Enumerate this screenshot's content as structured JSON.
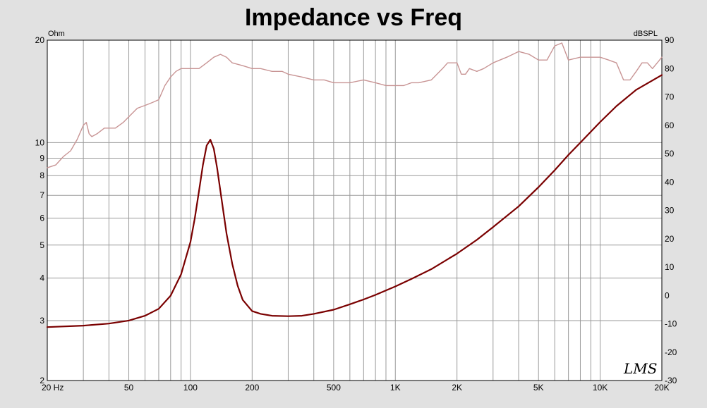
{
  "chart_data": {
    "type": "line",
    "title": "Impedance vs Freq",
    "left_unit": "Ohm",
    "right_unit": "dBSPL",
    "watermark": "LMS",
    "x_scale": "log",
    "xlim": [
      20,
      20000
    ],
    "y_left_scale": "log",
    "y_left_lim": [
      2,
      20
    ],
    "y_right_lim": [
      -30,
      90
    ],
    "grid": true,
    "x_ticks": [
      {
        "value": 20,
        "label": "20  Hz"
      },
      {
        "value": 50,
        "label": "50"
      },
      {
        "value": 100,
        "label": "100"
      },
      {
        "value": 200,
        "label": "200"
      },
      {
        "value": 500,
        "label": "500"
      },
      {
        "value": 1000,
        "label": "1K"
      },
      {
        "value": 2000,
        "label": "2K"
      },
      {
        "value": 5000,
        "label": "5K"
      },
      {
        "value": 10000,
        "label": "10K"
      },
      {
        "value": 20000,
        "label": "20K"
      }
    ],
    "y_left_ticks": [
      {
        "value": 2,
        "label": "2"
      },
      {
        "value": 3,
        "label": "3"
      },
      {
        "value": 4,
        "label": "4"
      },
      {
        "value": 5,
        "label": "5"
      },
      {
        "value": 6,
        "label": "6"
      },
      {
        "value": 7,
        "label": "7"
      },
      {
        "value": 8,
        "label": "8"
      },
      {
        "value": 9,
        "label": "9"
      },
      {
        "value": 10,
        "label": "10"
      },
      {
        "value": 20,
        "label": "20"
      }
    ],
    "y_right_ticks": [
      {
        "value": 90,
        "label": "90"
      },
      {
        "value": 80,
        "label": "80"
      },
      {
        "value": 70,
        "label": "70"
      },
      {
        "value": 60,
        "label": "60"
      },
      {
        "value": 50,
        "label": "50"
      },
      {
        "value": 40,
        "label": "40"
      },
      {
        "value": 30,
        "label": "30"
      },
      {
        "value": 20,
        "label": "20"
      },
      {
        "value": 10,
        "label": "10"
      },
      {
        "value": 0,
        "label": "0"
      },
      {
        "value": -10,
        "label": "-10"
      },
      {
        "value": -20,
        "label": "-20"
      },
      {
        "value": -30,
        "label": "-30"
      }
    ],
    "series": [
      {
        "axis": "left",
        "color": "#7a0000",
        "x": [
          20,
          30,
          40,
          50,
          60,
          70,
          80,
          90,
          100,
          105,
          110,
          115,
          120,
          125,
          130,
          135,
          140,
          150,
          160,
          170,
          180,
          200,
          220,
          250,
          300,
          350,
          400,
          500,
          600,
          700,
          800,
          1000,
          1200,
          1500,
          2000,
          2500,
          3000,
          4000,
          5000,
          6000,
          7000,
          8000,
          10000,
          12000,
          15000,
          20000
        ],
        "y": [
          2.87,
          2.9,
          2.94,
          3.0,
          3.1,
          3.25,
          3.55,
          4.1,
          5.1,
          6.0,
          7.2,
          8.6,
          9.8,
          10.2,
          9.6,
          8.4,
          7.2,
          5.4,
          4.4,
          3.8,
          3.45,
          3.2,
          3.14,
          3.1,
          3.09,
          3.1,
          3.14,
          3.23,
          3.35,
          3.46,
          3.57,
          3.78,
          3.98,
          4.25,
          4.72,
          5.18,
          5.65,
          6.5,
          7.4,
          8.3,
          9.2,
          10.0,
          11.5,
          12.8,
          14.3,
          15.8
        ]
      },
      {
        "axis": "right",
        "color": "#c89494",
        "x": [
          20,
          22,
          24,
          26,
          28,
          30,
          31,
          32,
          33,
          35,
          38,
          40,
          43,
          47,
          50,
          55,
          60,
          65,
          70,
          75,
          80,
          85,
          90,
          100,
          110,
          120,
          130,
          140,
          150,
          160,
          180,
          200,
          220,
          250,
          280,
          300,
          350,
          400,
          450,
          500,
          600,
          700,
          800,
          900,
          1000,
          1100,
          1200,
          1300,
          1500,
          1700,
          1800,
          2000,
          2100,
          2200,
          2300,
          2500,
          2700,
          3000,
          3500,
          4000,
          4500,
          5000,
          5500,
          6000,
          6500,
          7000,
          8000,
          9000,
          10000,
          11000,
          12000,
          13000,
          14000,
          15000,
          16000,
          17000,
          18000,
          19000,
          20000
        ],
        "y": [
          45,
          46,
          49,
          51,
          55,
          60,
          61,
          57,
          56,
          57,
          59,
          59,
          59,
          61,
          63,
          66,
          67,
          68,
          69,
          74,
          77,
          79,
          80,
          80,
          80,
          82,
          84,
          85,
          84,
          82,
          81,
          80,
          80,
          79,
          79,
          78,
          77,
          76,
          76,
          75,
          75,
          76,
          75,
          74,
          74,
          74,
          75,
          75,
          76,
          80,
          82,
          82,
          78,
          78,
          80,
          79,
          80,
          82,
          84,
          86,
          85,
          83,
          83,
          88,
          89,
          83,
          84,
          84,
          84,
          83,
          82,
          76,
          76,
          79,
          82,
          82,
          80,
          82,
          84
        ]
      }
    ]
  }
}
